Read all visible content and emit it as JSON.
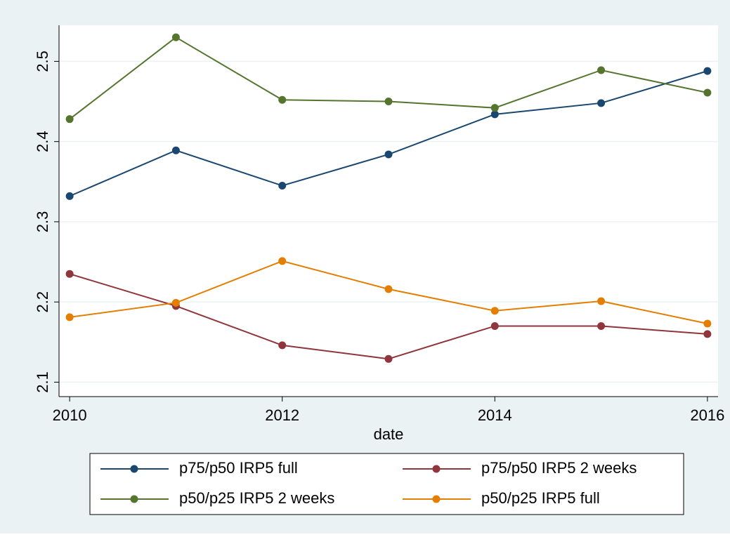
{
  "chart_data": {
    "type": "line",
    "x_label": "date",
    "x": [
      2010,
      2011,
      2012,
      2013,
      2014,
      2015,
      2016
    ],
    "xlim": [
      2009.9,
      2016.1
    ],
    "xticks": [
      2010,
      2012,
      2014,
      2016
    ],
    "ylim": [
      2.082,
      2.545
    ],
    "yticks": [
      2.1,
      2.2,
      2.3,
      2.4,
      2.5
    ],
    "grid": true,
    "legend": "bottom",
    "series": [
      {
        "name": "p75/p50 IRP5 full",
        "color": "#1a476f",
        "values": [
          2.332,
          2.389,
          2.345,
          2.384,
          2.434,
          2.448,
          2.488
        ]
      },
      {
        "name": "p75/p50 IRP5 2 weeks",
        "color": "#90353b",
        "values": [
          2.235,
          2.195,
          2.146,
          2.129,
          2.17,
          2.17,
          2.16
        ]
      },
      {
        "name": "p50/p25 IRP5 2 weeks",
        "color": "#55752f",
        "values": [
          2.428,
          2.53,
          2.452,
          2.45,
          2.442,
          2.489,
          2.461
        ]
      },
      {
        "name": "p50/p25 IRP5 full",
        "color": "#e37e00",
        "values": [
          2.181,
          2.199,
          2.251,
          2.216,
          2.189,
          2.201,
          2.173
        ]
      }
    ]
  }
}
